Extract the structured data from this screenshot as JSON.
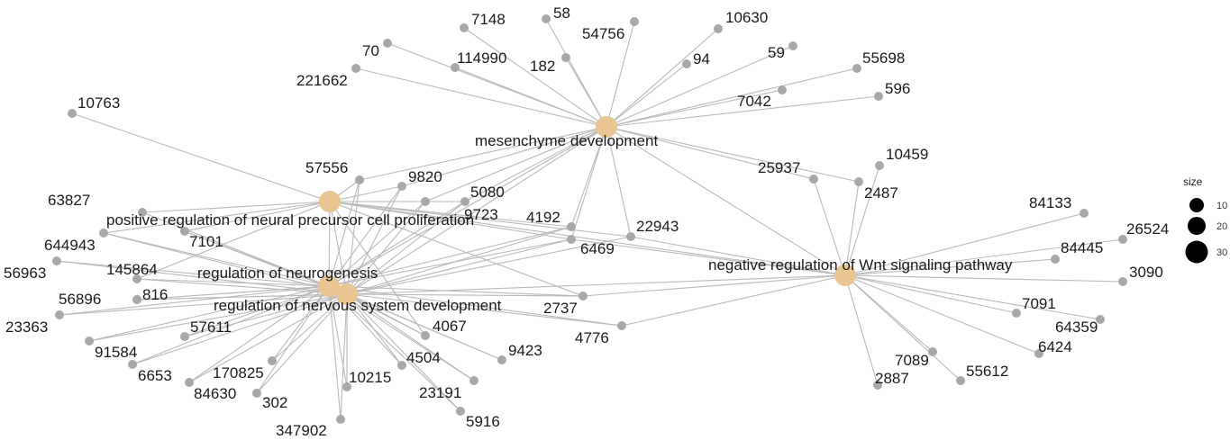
{
  "colors": {
    "edge": "#b9b9b9",
    "gene": "#a8a8a8",
    "term": "#e8c591"
  },
  "terms": [
    {
      "id": "mesenchyme",
      "label": "mesenchyme development"
    },
    {
      "id": "neuralprec",
      "label": "positive regulation of neural precursor cell proliferation"
    },
    {
      "id": "neurogenesis",
      "label": "regulation of neurogenesis"
    },
    {
      "id": "nervous",
      "label": "regulation of nervous system development"
    },
    {
      "id": "wnt",
      "label": "negative regulation of Wnt signaling pathway"
    }
  ],
  "genes": [
    "7148",
    "58",
    "54756",
    "10630",
    "70",
    "114990",
    "182",
    "94",
    "59",
    "55698",
    "221662",
    "7042",
    "596",
    "10763",
    "57556",
    "9820",
    "5080",
    "9723",
    "63827",
    "4192",
    "22943",
    "6469",
    "25937",
    "2487",
    "10459",
    "84133",
    "26524",
    "84445",
    "3090",
    "644943",
    "7101",
    "145864",
    "56963",
    "56896",
    "816",
    "23363",
    "57611",
    "91584",
    "6653",
    "170825",
    "84630",
    "302",
    "10215",
    "4504",
    "23191",
    "5916",
    "347902",
    "4067",
    "9423",
    "2737",
    "4776",
    "7091",
    "64359",
    "6424",
    "7089",
    "55612",
    "2887"
  ],
  "edges": [
    [
      "mesenchyme",
      "7148"
    ],
    [
      "mesenchyme",
      "58"
    ],
    [
      "mesenchyme",
      "54756"
    ],
    [
      "mesenchyme",
      "10630"
    ],
    [
      "mesenchyme",
      "70"
    ],
    [
      "mesenchyme",
      "114990"
    ],
    [
      "mesenchyme",
      "182"
    ],
    [
      "mesenchyme",
      "94"
    ],
    [
      "mesenchyme",
      "59"
    ],
    [
      "mesenchyme",
      "55698"
    ],
    [
      "mesenchyme",
      "221662"
    ],
    [
      "mesenchyme",
      "7042"
    ],
    [
      "mesenchyme",
      "596"
    ],
    [
      "mesenchyme",
      "25937"
    ],
    [
      "mesenchyme",
      "2487"
    ],
    [
      "mesenchyme",
      "57556"
    ],
    [
      "mesenchyme",
      "9820"
    ],
    [
      "mesenchyme",
      "5080"
    ],
    [
      "mesenchyme",
      "9723"
    ],
    [
      "mesenchyme",
      "22943"
    ],
    [
      "mesenchyme",
      "4192"
    ],
    [
      "mesenchyme",
      "6469"
    ],
    [
      "mesenchyme",
      "nervous"
    ],
    [
      "mesenchyme",
      "neurogenesis"
    ],
    [
      "mesenchyme",
      "wnt"
    ],
    [
      "neuralprec",
      "10763"
    ],
    [
      "neuralprec",
      "63827"
    ],
    [
      "neuralprec",
      "57556"
    ],
    [
      "neuralprec",
      "9820"
    ],
    [
      "neuralprec",
      "5080"
    ],
    [
      "neuralprec",
      "9723"
    ],
    [
      "neuralprec",
      "644943"
    ],
    [
      "neuralprec",
      "7101"
    ],
    [
      "neuralprec",
      "145864"
    ],
    [
      "neuralprec",
      "4192"
    ],
    [
      "neuralprec",
      "22943"
    ],
    [
      "neuralprec",
      "6469"
    ],
    [
      "neuralprec",
      "4067"
    ],
    [
      "neuralprec",
      "2737"
    ],
    [
      "neuralprec",
      "neurogenesis"
    ],
    [
      "neuralprec",
      "nervous"
    ],
    [
      "neuralprec",
      "wnt"
    ],
    [
      "neurogenesis",
      "644943"
    ],
    [
      "neurogenesis",
      "7101"
    ],
    [
      "neurogenesis",
      "145864"
    ],
    [
      "neurogenesis",
      "56963"
    ],
    [
      "neurogenesis",
      "56896"
    ],
    [
      "neurogenesis",
      "816"
    ],
    [
      "neurogenesis",
      "23363"
    ],
    [
      "neurogenesis",
      "57611"
    ],
    [
      "neurogenesis",
      "91584"
    ],
    [
      "neurogenesis",
      "6653"
    ],
    [
      "neurogenesis",
      "170825"
    ],
    [
      "neurogenesis",
      "84630"
    ],
    [
      "neurogenesis",
      "302"
    ],
    [
      "neurogenesis",
      "10215"
    ],
    [
      "neurogenesis",
      "347902"
    ],
    [
      "neurogenesis",
      "4504"
    ],
    [
      "neurogenesis",
      "23191"
    ],
    [
      "neurogenesis",
      "5916"
    ],
    [
      "neurogenesis",
      "4067"
    ],
    [
      "neurogenesis",
      "9423"
    ],
    [
      "neurogenesis",
      "9820"
    ],
    [
      "neurogenesis",
      "5080"
    ],
    [
      "neurogenesis",
      "9723"
    ],
    [
      "neurogenesis",
      "57556"
    ],
    [
      "neurogenesis",
      "4192"
    ],
    [
      "neurogenesis",
      "6469"
    ],
    [
      "neurogenesis",
      "2737"
    ],
    [
      "neurogenesis",
      "4776"
    ],
    [
      "neurogenesis",
      "63827"
    ],
    [
      "nervous",
      "644943"
    ],
    [
      "nervous",
      "7101"
    ],
    [
      "nervous",
      "145864"
    ],
    [
      "nervous",
      "56963"
    ],
    [
      "nervous",
      "56896"
    ],
    [
      "nervous",
      "816"
    ],
    [
      "nervous",
      "23363"
    ],
    [
      "nervous",
      "57611"
    ],
    [
      "nervous",
      "91584"
    ],
    [
      "nervous",
      "6653"
    ],
    [
      "nervous",
      "170825"
    ],
    [
      "nervous",
      "84630"
    ],
    [
      "nervous",
      "302"
    ],
    [
      "nervous",
      "10215"
    ],
    [
      "nervous",
      "347902"
    ],
    [
      "nervous",
      "4504"
    ],
    [
      "nervous",
      "23191"
    ],
    [
      "nervous",
      "5916"
    ],
    [
      "nervous",
      "4067"
    ],
    [
      "nervous",
      "9423"
    ],
    [
      "nervous",
      "9820"
    ],
    [
      "nervous",
      "5080"
    ],
    [
      "nervous",
      "9723"
    ],
    [
      "nervous",
      "57556"
    ],
    [
      "nervous",
      "4192"
    ],
    [
      "nervous",
      "6469"
    ],
    [
      "nervous",
      "22943"
    ],
    [
      "nervous",
      "2737"
    ],
    [
      "nervous",
      "4776"
    ],
    [
      "nervous",
      "wnt"
    ],
    [
      "wnt",
      "25937"
    ],
    [
      "wnt",
      "2487"
    ],
    [
      "wnt",
      "10459"
    ],
    [
      "wnt",
      "84133"
    ],
    [
      "wnt",
      "26524"
    ],
    [
      "wnt",
      "84445"
    ],
    [
      "wnt",
      "3090"
    ],
    [
      "wnt",
      "7091"
    ],
    [
      "wnt",
      "64359"
    ],
    [
      "wnt",
      "6424"
    ],
    [
      "wnt",
      "7089"
    ],
    [
      "wnt",
      "55612"
    ],
    [
      "wnt",
      "2887"
    ],
    [
      "wnt",
      "22943"
    ],
    [
      "wnt",
      "4776"
    ],
    [
      "wnt",
      "2737"
    ],
    [
      "wnt",
      "6469"
    ]
  ],
  "legend": {
    "title": "size",
    "labels": [
      "10",
      "20",
      "30"
    ],
    "sizes": [
      10,
      20,
      30
    ]
  }
}
